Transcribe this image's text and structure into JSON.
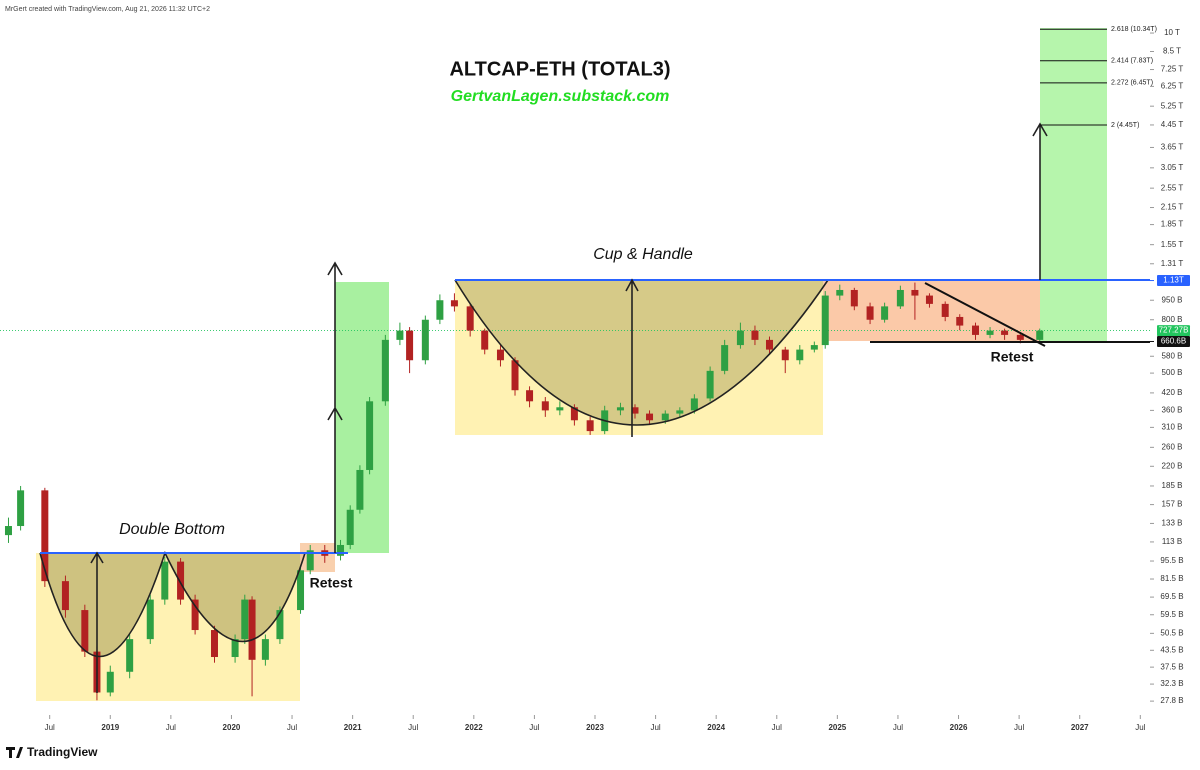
{
  "header": "MrGert created with TradingView.com, Aug 21, 2026 11:32 UTC+2",
  "footer": "TradingView",
  "chart_data": {
    "type": "candlestick",
    "title": "ALTCAP-ETH (TOTAL3)",
    "subtitle": "GertvanLagen.substack.com",
    "annotations": [
      "Double Bottom",
      "Retest",
      "Cup & Handle",
      "Retest"
    ],
    "log_scale": true,
    "up_color": "#2ea043",
    "down_color": "#b22222",
    "x": [
      2018.16,
      2018.26,
      2018.46,
      2018.63,
      2018.79,
      2018.89,
      2019.0,
      2019.16,
      2019.33,
      2019.45,
      2019.58,
      2019.7,
      2019.86,
      2020.03,
      2020.11,
      2020.17,
      2020.28,
      2020.4,
      2020.57,
      2020.65,
      2020.77,
      2020.9,
      2020.98,
      2021.06,
      2021.14,
      2021.27,
      2021.39,
      2021.47,
      2021.6,
      2021.72,
      2021.84,
      2021.97,
      2022.09,
      2022.22,
      2022.34,
      2022.46,
      2022.59,
      2022.71,
      2022.83,
      2022.96,
      2023.08,
      2023.21,
      2023.33,
      2023.45,
      2023.58,
      2023.7,
      2023.82,
      2023.95,
      2024.07,
      2024.2,
      2024.32,
      2024.44,
      2024.57,
      2024.69,
      2024.81,
      2024.9,
      2025.02,
      2025.14,
      2025.27,
      2025.39,
      2025.52,
      2025.64,
      2025.76,
      2025.89,
      2026.01,
      2026.14,
      2026.26,
      2026.38,
      2026.51,
      2026.67
    ],
    "open": [
      120,
      130,
      178,
      80,
      62,
      43,
      30,
      36,
      48,
      68,
      95,
      68,
      52,
      41,
      48,
      68,
      40,
      48,
      62,
      88,
      105,
      100,
      110,
      150,
      213,
      390,
      670,
      727,
      560,
      800,
      950,
      900,
      727,
      615,
      560,
      430,
      390,
      360,
      370,
      330,
      300,
      360,
      370,
      350,
      330,
      350,
      360,
      400,
      510,
      640,
      727,
      670,
      615,
      560,
      615,
      640,
      990,
      1040,
      900,
      800,
      900,
      1040,
      990,
      920,
      820,
      760,
      700,
      727,
      700,
      670
    ],
    "high": [
      140,
      185,
      182,
      84,
      65,
      45,
      38,
      50,
      71,
      99,
      98,
      71,
      54,
      50,
      71,
      70,
      50,
      64,
      91,
      110,
      110,
      115,
      156,
      222,
      405,
      700,
      780,
      750,
      830,
      1000,
      1010,
      920,
      740,
      640,
      575,
      445,
      405,
      390,
      380,
      340,
      375,
      385,
      380,
      360,
      360,
      370,
      415,
      530,
      670,
      780,
      760,
      690,
      630,
      640,
      660,
      1030,
      1090,
      1060,
      930,
      930,
      1080,
      1110,
      1010,
      940,
      840,
      780,
      750,
      740,
      715,
      740
    ],
    "low": [
      112,
      125,
      76,
      58,
      41,
      28,
      29,
      34,
      46,
      65,
      65,
      50,
      39,
      39,
      46,
      29,
      38,
      46,
      60,
      85,
      94,
      96,
      106,
      145,
      205,
      375,
      640,
      500,
      540,
      770,
      860,
      690,
      590,
      530,
      410,
      370,
      340,
      345,
      315,
      290,
      292,
      345,
      335,
      318,
      320,
      340,
      350,
      390,
      495,
      620,
      640,
      590,
      500,
      540,
      600,
      620,
      950,
      870,
      770,
      780,
      880,
      800,
      890,
      790,
      730,
      670,
      680,
      670,
      650,
      660
    ],
    "close": [
      130,
      178,
      80,
      62,
      43,
      30,
      36,
      48,
      68,
      95,
      68,
      52,
      41,
      48,
      68,
      40,
      48,
      62,
      88,
      105,
      100,
      110,
      150,
      213,
      390,
      670,
      727,
      560,
      800,
      950,
      900,
      727,
      615,
      560,
      430,
      390,
      360,
      370,
      330,
      300,
      360,
      370,
      350,
      330,
      350,
      360,
      400,
      510,
      640,
      727,
      670,
      615,
      560,
      615,
      640,
      990,
      1040,
      900,
      800,
      900,
      1040,
      990,
      920,
      820,
      760,
      700,
      727,
      700,
      670,
      727
    ],
    "xlim": [
      2018.09,
      2027.58
    ],
    "xticks": [
      {
        "value": 2018.5,
        "label": "Jul"
      },
      2019,
      {
        "value": 2019.5,
        "label": "Jul"
      },
      2020,
      {
        "value": 2020.5,
        "label": "Jul"
      },
      2021,
      {
        "value": 2021.5,
        "label": "Jul"
      },
      2022,
      {
        "value": 2022.5,
        "label": "Jul"
      },
      2023,
      {
        "value": 2023.5,
        "label": "Jul"
      },
      2024,
      {
        "value": 2024.5,
        "label": "Jul"
      },
      2025,
      {
        "value": 2025.5,
        "label": "Jul"
      },
      2026,
      {
        "value": 2026.5,
        "label": "Jul"
      },
      2027,
      {
        "value": 2027.5,
        "label": "Jul"
      }
    ],
    "ylim": [
      24.6,
      12250
    ],
    "yticks": [
      {
        "value": 10000,
        "label": "10 T"
      },
      {
        "value": 8500,
        "label": "8.5 T"
      },
      {
        "value": 7250,
        "label": "7.25 T"
      },
      {
        "value": 6250,
        "label": "6.25 T"
      },
      {
        "value": 5250,
        "label": "5.25 T"
      },
      {
        "value": 4450,
        "label": "4.45 T"
      },
      {
        "value": 3650,
        "label": "3.65 T"
      },
      {
        "value": 3050,
        "label": "3.05 T"
      },
      {
        "value": 2550,
        "label": "2.55 T"
      },
      {
        "value": 2150,
        "label": "2.15 T"
      },
      {
        "value": 1850,
        "label": "1.85 T"
      },
      {
        "value": 1550,
        "label": "1.55 T"
      },
      {
        "value": 1310,
        "label": "1.31 T"
      },
      {
        "value": 950,
        "label": "950 B"
      },
      {
        "value": 800,
        "label": "800 B"
      },
      {
        "value": 580,
        "label": "580 B"
      },
      {
        "value": 500,
        "label": "500 B"
      },
      {
        "value": 420,
        "label": "420 B"
      },
      {
        "value": 360,
        "label": "360 B"
      },
      {
        "value": 310,
        "label": "310 B"
      },
      {
        "value": 260,
        "label": "260 B"
      },
      {
        "value": 220,
        "label": "220 B"
      },
      {
        "value": 185,
        "label": "185 B"
      },
      {
        "value": 157,
        "label": "157 B"
      },
      {
        "value": 133,
        "label": "133 B"
      },
      {
        "value": 113,
        "label": "113 B"
      },
      {
        "value": 95.5,
        "label": "95.5 B"
      },
      {
        "value": 81.5,
        "label": "81.5 B"
      },
      {
        "value": 69.5,
        "label": "69.5 B"
      },
      {
        "value": 59.5,
        "label": "59.5 B"
      },
      {
        "value": 50.5,
        "label": "50.5 B"
      },
      {
        "value": 43.5,
        "label": "43.5 B"
      },
      {
        "value": 37.5,
        "label": "37.5 B"
      },
      {
        "value": 32.3,
        "label": "32.3 B"
      },
      {
        "value": 27.8,
        "label": "27.8 B"
      }
    ],
    "price_labels": [
      {
        "value": 1130,
        "label": "1.13T",
        "color": "#2962ff"
      },
      {
        "value": 727.27,
        "label": "727.27B",
        "color": "#22c55e"
      },
      {
        "value": 660.6,
        "label": "660.6B",
        "color": "#111111"
      }
    ],
    "fib_levels": [
      {
        "value": 10340,
        "label": "2.618 (10.34T)"
      },
      {
        "value": 7830,
        "label": "2.414 (7.83T)"
      },
      {
        "value": 6450,
        "label": "2.272 (6.45T)"
      },
      {
        "value": 4450,
        "label": "2 (4.45T)"
      }
    ]
  }
}
